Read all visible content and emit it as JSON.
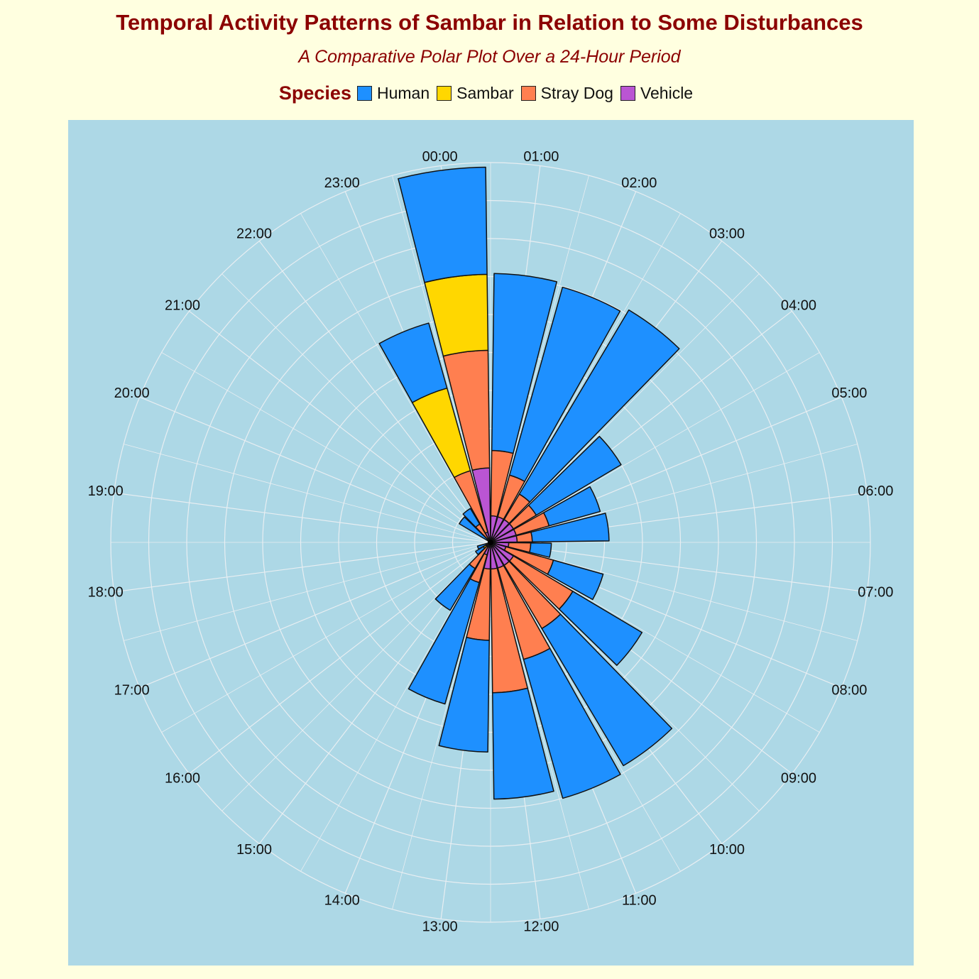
{
  "title": "Temporal Activity Patterns of Sambar in Relation to Some Disturbances",
  "subtitle": "A Comparative Polar Plot Over a 24-Hour Period",
  "legend": {
    "title": "Species",
    "items": [
      {
        "label": "Human",
        "color": "#1E90FF"
      },
      {
        "label": "Sambar",
        "color": "#FFD700"
      },
      {
        "label": "Stray Dog",
        "color": "#FF7F50"
      },
      {
        "label": "Vehicle",
        "color": "#BA55D3"
      }
    ]
  },
  "colors": {
    "background": "#FFFFE0",
    "panel": "#ADD8E6",
    "grid": "#E8EEF2",
    "title": "#8B0000",
    "bar_outline": "#111111"
  },
  "chart_data": {
    "type": "bar",
    "coord": "polar",
    "stacked": true,
    "bar_width_hours": 0.9,
    "legend_position": "top",
    "grid": true,
    "x_range": [
      0,
      24
    ],
    "y_max": 500,
    "categories": [
      "00:00",
      "01:00",
      "02:00",
      "03:00",
      "04:00",
      "05:00",
      "06:00",
      "07:00",
      "08:00",
      "09:00",
      "10:00",
      "11:00",
      "12:00",
      "13:00",
      "14:00",
      "15:00",
      "16:00",
      "17:00",
      "18:00",
      "19:00",
      "20:00",
      "21:00",
      "22:00",
      "23:00"
    ],
    "series": [
      {
        "name": "Vehicle",
        "values": [
          0,
          0,
          0,
          0,
          0,
          0,
          0,
          0,
          0,
          0,
          0,
          0,
          0,
          0,
          0,
          0,
          0,
          0,
          0,
          0,
          0,
          0,
          0,
          0
        ]
      },
      {
        "name": "Stray Dog",
        "values": [
          0,
          0,
          0,
          0,
          0,
          0,
          0,
          0,
          0,
          0,
          0,
          0,
          0,
          0,
          0,
          0,
          0,
          0,
          0,
          0,
          0,
          0,
          0,
          0
        ]
      },
      {
        "name": "Sambar",
        "values": [
          0,
          0,
          0,
          0,
          0,
          0,
          0,
          0,
          0,
          0,
          0,
          0,
          0,
          0,
          0,
          0,
          0,
          0,
          0,
          0,
          0,
          0,
          0,
          0
        ]
      },
      {
        "name": "Human",
        "values": [
          0,
          0,
          0,
          0,
          0,
          0,
          0,
          0,
          0,
          0,
          0,
          0,
          0,
          0,
          0,
          0,
          0,
          0,
          0,
          0,
          0,
          0,
          0,
          0
        ]
      }
    ],
    "stack_tops": [
      {
        "hour": "21:00",
        "Vehicle": 3,
        "Stray Dog": 3,
        "Sambar": 3,
        "Human": 48
      },
      {
        "hour": "22:00",
        "Vehicle": 3,
        "Stray Dog": 28,
        "Sambar": 28,
        "Human": 52
      },
      {
        "hour": "23:00",
        "Vehicle": 14,
        "Stray Dog": 98,
        "Sambar": 211,
        "Human": 300
      },
      {
        "hour": "00:00",
        "Vehicle": 98,
        "Stray Dog": 253,
        "Sambar": 353,
        "Human": 494
      },
      {
        "hour": "01:00",
        "Vehicle": 35,
        "Stray Dog": 121,
        "Sambar": 121,
        "Human": 354
      },
      {
        "hour": "02:00",
        "Vehicle": 35,
        "Stray Dog": 92,
        "Sambar": 92,
        "Human": 349
      },
      {
        "hour": "03:00",
        "Vehicle": 35,
        "Stray Dog": 74,
        "Sambar": 74,
        "Human": 356
      },
      {
        "hour": "04:00",
        "Vehicle": 35,
        "Stray Dog": 70,
        "Sambar": 70,
        "Human": 200
      },
      {
        "hour": "05:00",
        "Vehicle": 35,
        "Stray Dog": 80,
        "Sambar": 80,
        "Human": 150
      },
      {
        "hour": "06:00",
        "Vehicle": 35,
        "Stray Dog": 55,
        "Sambar": 55,
        "Human": 156
      },
      {
        "hour": "07:00",
        "Vehicle": 24,
        "Stray Dog": 53,
        "Sambar": 53,
        "Human": 80
      },
      {
        "hour": "08:00",
        "Vehicle": 21,
        "Stray Dog": 86,
        "Sambar": 86,
        "Human": 154
      },
      {
        "hour": "09:00",
        "Vehicle": 35,
        "Stray Dog": 126,
        "Sambar": 126,
        "Human": 232
      },
      {
        "hour": "10:00",
        "Vehicle": 35,
        "Stray Dog": 132,
        "Sambar": 132,
        "Human": 342
      },
      {
        "hour": "11:00",
        "Vehicle": 35,
        "Stray Dog": 160,
        "Sambar": 160,
        "Human": 350
      },
      {
        "hour": "12:00",
        "Vehicle": 35,
        "Stray Dog": 198,
        "Sambar": 198,
        "Human": 338
      },
      {
        "hour": "13:00",
        "Vehicle": 35,
        "Stray Dog": 129,
        "Sambar": 129,
        "Human": 276
      },
      {
        "hour": "14:00",
        "Vehicle": 17,
        "Stray Dog": 55,
        "Sambar": 55,
        "Human": 221
      },
      {
        "hour": "15:00",
        "Vehicle": 7,
        "Stray Dog": 40,
        "Sambar": 40,
        "Human": 104
      },
      {
        "hour": "16:00",
        "Vehicle": 3,
        "Stray Dog": 7,
        "Sambar": 11,
        "Human": 23
      },
      {
        "hour": "17:00",
        "Vehicle": 3,
        "Stray Dog": 3,
        "Sambar": 3,
        "Human": 18
      },
      {
        "hour": "18:00",
        "Vehicle": 3,
        "Stray Dog": 3,
        "Sambar": 3,
        "Human": 3
      },
      {
        "hour": "19:00",
        "Vehicle": 3,
        "Stray Dog": 3,
        "Sambar": 3,
        "Human": 3
      },
      {
        "hour": "20:00",
        "Vehicle": 3,
        "Stray Dog": 3,
        "Sambar": 3,
        "Human": 3
      }
    ]
  }
}
